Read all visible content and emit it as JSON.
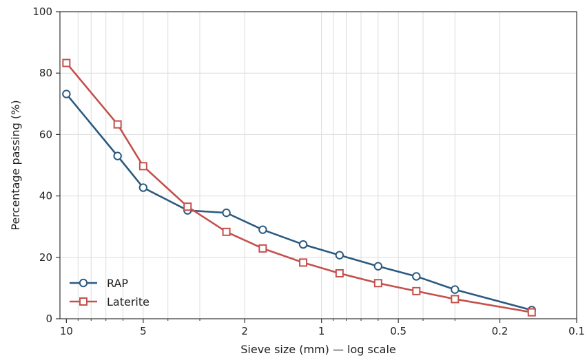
{
  "chart_data": {
    "type": "line",
    "xscale": "log",
    "x_reversed": true,
    "xlim": [
      10.6,
      0.1
    ],
    "ylim": [
      0,
      100
    ],
    "xlabel": "Sieve size (mm) — log scale",
    "ylabel": "Percentage passing (%)",
    "grid": true,
    "legend_position": "bottom-left",
    "x_ticks": [
      {
        "value": 10,
        "label": "10"
      },
      {
        "value": 5,
        "label": "5"
      },
      {
        "value": 2,
        "label": "2"
      },
      {
        "value": 1,
        "label": "1"
      },
      {
        "value": 0.5,
        "label": "0.5"
      },
      {
        "value": 0.2,
        "label": "0.2"
      },
      {
        "value": 0.1,
        "label": "0.1"
      }
    ],
    "y_ticks": [
      {
        "value": 0,
        "label": "0"
      },
      {
        "value": 20,
        "label": "20"
      },
      {
        "value": 40,
        "label": "40"
      },
      {
        "value": 60,
        "label": "60"
      },
      {
        "value": 80,
        "label": "80"
      },
      {
        "value": 100,
        "label": "100"
      }
    ],
    "x": [
      10,
      6.3,
      5,
      3.35,
      2.36,
      1.7,
      1.18,
      0.85,
      0.6,
      0.425,
      0.3,
      0.15
    ],
    "series": [
      {
        "name": "RAP",
        "color": "#2b5a80",
        "marker": "circle",
        "values": [
          73.2,
          53.0,
          42.7,
          35.3,
          34.5,
          29.0,
          24.2,
          20.7,
          17.1,
          13.8,
          9.5,
          2.8
        ]
      },
      {
        "name": "Laterite",
        "color": "#c4504c",
        "marker": "square",
        "values": [
          83.3,
          63.3,
          49.7,
          36.5,
          28.3,
          22.9,
          18.3,
          14.8,
          11.6,
          9.0,
          6.4,
          2.1
        ]
      }
    ]
  }
}
